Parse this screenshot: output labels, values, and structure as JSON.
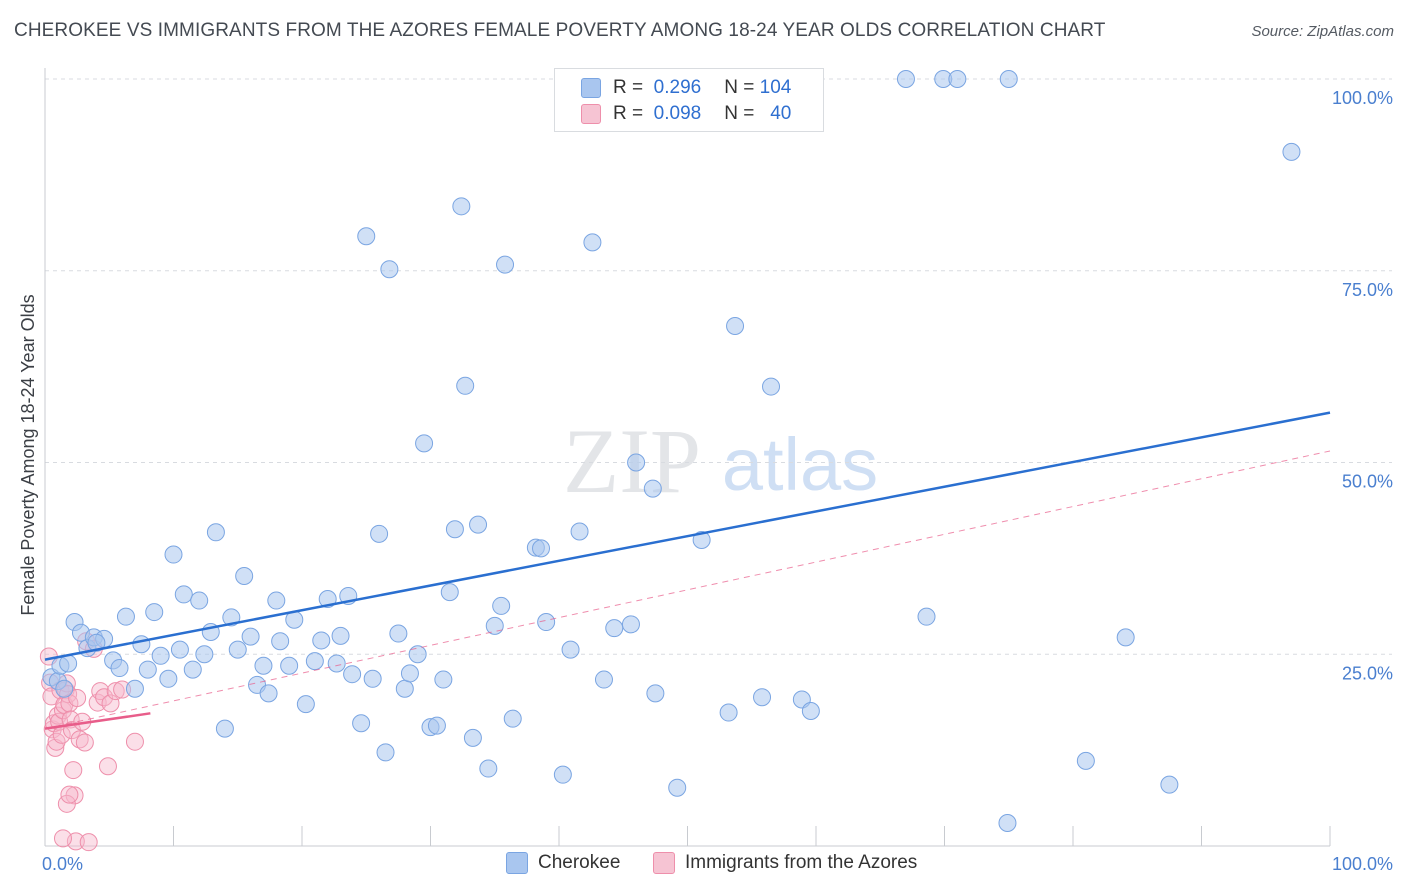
{
  "title": "CHEROKEE VS IMMIGRANTS FROM THE AZORES FEMALE POVERTY AMONG 18-24 YEAR OLDS CORRELATION CHART",
  "source": "Source: ZipAtlas.com",
  "watermark": {
    "zip": "ZIP",
    "atlas": "atlas"
  },
  "legend": {
    "rows": [
      {
        "r_label": "R =",
        "r_value": "0.296",
        "n_label": "N =",
        "n_value": "104"
      },
      {
        "r_label": "R =",
        "r_value": "0.098",
        "n_label": "N =",
        "n_value": "40"
      }
    ]
  },
  "bottom_legend": {
    "series1": "Cherokee",
    "series2": "Immigrants from the Azores"
  },
  "colors": {
    "blue_fill": "#a9c6ef",
    "blue_stroke": "#7aa5e2",
    "blue_line": "#2a6fd0",
    "pink_fill": "#f6b9cb",
    "pink_stroke": "#ee8fab",
    "pink_line": "#e85d8a",
    "tick_text": "#4a7fcf",
    "grid": "#d8dbe0"
  },
  "chart_data": {
    "type": "scatter",
    "title": "CHEROKEE VS IMMIGRANTS FROM THE AZORES FEMALE POVERTY AMONG 18-24 YEAR OLDS CORRELATION CHART",
    "xlabel": "",
    "ylabel": "Female Poverty Among 18-24 Year Olds",
    "xlim": [
      0,
      100
    ],
    "ylim": [
      0,
      100
    ],
    "x_tick_labels": [
      "0.0%",
      "100.0%"
    ],
    "y_ticks": [
      25,
      50,
      75,
      100
    ],
    "y_tick_labels": [
      "25.0%",
      "50.0%",
      "75.0%",
      "100.0%"
    ],
    "series": [
      {
        "name": "Cherokee",
        "r": 0.296,
        "n": 104,
        "trend": {
          "x": [
            0,
            100
          ],
          "y": [
            24.3,
            56.5
          ],
          "style": "solid"
        },
        "points": [
          [
            0.5,
            22.0
          ],
          [
            1.0,
            21.5
          ],
          [
            1.2,
            23.5
          ],
          [
            1.5,
            20.5
          ],
          [
            1.8,
            23.8
          ],
          [
            2.3,
            29.2
          ],
          [
            2.8,
            27.8
          ],
          [
            3.3,
            25.8
          ],
          [
            3.8,
            27.2
          ],
          [
            4.6,
            27.0
          ],
          [
            5.3,
            24.2
          ],
          [
            5.8,
            23.2
          ],
          [
            6.3,
            29.9
          ],
          [
            7.0,
            20.5
          ],
          [
            7.5,
            26.3
          ],
          [
            8.0,
            23.0
          ],
          [
            8.5,
            30.5
          ],
          [
            9.0,
            24.8
          ],
          [
            9.6,
            21.8
          ],
          [
            10.0,
            38.0
          ],
          [
            10.5,
            25.6
          ],
          [
            10.8,
            32.8
          ],
          [
            11.5,
            23.0
          ],
          [
            12.0,
            32.0
          ],
          [
            12.4,
            25.0
          ],
          [
            12.9,
            27.9
          ],
          [
            13.3,
            40.9
          ],
          [
            14.0,
            15.3
          ],
          [
            14.5,
            29.8
          ],
          [
            15.0,
            25.6
          ],
          [
            15.5,
            35.2
          ],
          [
            16.0,
            27.3
          ],
          [
            16.5,
            21.0
          ],
          [
            17.0,
            23.5
          ],
          [
            17.4,
            19.9
          ],
          [
            18.0,
            32.0
          ],
          [
            18.3,
            26.7
          ],
          [
            19.0,
            23.5
          ],
          [
            19.4,
            29.5
          ],
          [
            20.3,
            18.5
          ],
          [
            21.0,
            24.1
          ],
          [
            21.5,
            26.8
          ],
          [
            22.0,
            32.2
          ],
          [
            22.7,
            23.8
          ],
          [
            23.0,
            27.4
          ],
          [
            23.6,
            32.6
          ],
          [
            23.9,
            22.4
          ],
          [
            24.6,
            16.0
          ],
          [
            25.0,
            79.5
          ],
          [
            25.5,
            21.8
          ],
          [
            26.0,
            40.7
          ],
          [
            26.5,
            12.2
          ],
          [
            26.8,
            75.2
          ],
          [
            27.5,
            27.7
          ],
          [
            28.0,
            20.5
          ],
          [
            28.4,
            22.5
          ],
          [
            29.0,
            25.0
          ],
          [
            29.5,
            52.5
          ],
          [
            30.0,
            15.5
          ],
          [
            30.5,
            15.7
          ],
          [
            31.0,
            21.7
          ],
          [
            31.5,
            33.1
          ],
          [
            31.9,
            41.3
          ],
          [
            32.4,
            83.4
          ],
          [
            32.7,
            60.0
          ],
          [
            33.3,
            14.1
          ],
          [
            33.7,
            41.9
          ],
          [
            34.5,
            10.1
          ],
          [
            35.0,
            28.7
          ],
          [
            35.5,
            31.3
          ],
          [
            35.8,
            75.8
          ],
          [
            36.4,
            16.6
          ],
          [
            38.2,
            38.9
          ],
          [
            38.6,
            38.8
          ],
          [
            39.0,
            29.2
          ],
          [
            40.3,
            9.3
          ],
          [
            40.9,
            25.6
          ],
          [
            41.6,
            41.0
          ],
          [
            42.6,
            78.7
          ],
          [
            43.5,
            21.7
          ],
          [
            44.3,
            28.4
          ],
          [
            45.6,
            28.9
          ],
          [
            46.0,
            50.0
          ],
          [
            47.3,
            46.6
          ],
          [
            47.5,
            19.9
          ],
          [
            49.2,
            7.6
          ],
          [
            51.1,
            39.9
          ],
          [
            53.2,
            17.4
          ],
          [
            53.7,
            67.8
          ],
          [
            55.8,
            19.4
          ],
          [
            56.5,
            59.9
          ],
          [
            58.9,
            19.1
          ],
          [
            59.6,
            17.6
          ],
          [
            67.0,
            100.0
          ],
          [
            68.6,
            29.9
          ],
          [
            69.9,
            100.0
          ],
          [
            71.0,
            100.0
          ],
          [
            74.9,
            3.0
          ],
          [
            75.0,
            100.0
          ],
          [
            81.0,
            11.1
          ],
          [
            84.1,
            27.2
          ],
          [
            87.5,
            8.0
          ],
          [
            97.0,
            90.5
          ],
          [
            4.0,
            26.5
          ]
        ]
      },
      {
        "name": "Immigrants from the Azores",
        "r": 0.098,
        "n": 40,
        "trend": {
          "x": [
            0,
            8.2
          ],
          "y": [
            15.3,
            17.3
          ],
          "style": "solid"
        },
        "trend_extended": {
          "x": [
            0,
            100
          ],
          "y": [
            15.3,
            51.5
          ],
          "style": "dashed"
        },
        "points": [
          [
            0.3,
            24.7
          ],
          [
            0.4,
            21.3
          ],
          [
            0.5,
            19.5
          ],
          [
            0.6,
            15.2
          ],
          [
            0.7,
            16.0
          ],
          [
            0.8,
            12.8
          ],
          [
            0.9,
            13.6
          ],
          [
            1.0,
            17.0
          ],
          [
            1.1,
            16.2
          ],
          [
            1.2,
            20.3
          ],
          [
            1.3,
            14.5
          ],
          [
            1.4,
            17.7
          ],
          [
            1.5,
            18.4
          ],
          [
            1.6,
            20.3
          ],
          [
            1.7,
            21.2
          ],
          [
            1.8,
            19.8
          ],
          [
            1.9,
            18.6
          ],
          [
            2.0,
            16.5
          ],
          [
            2.1,
            15.1
          ],
          [
            2.2,
            9.9
          ],
          [
            2.3,
            6.6
          ],
          [
            2.4,
            0.6
          ],
          [
            2.5,
            19.3
          ],
          [
            2.7,
            13.9
          ],
          [
            2.9,
            16.2
          ],
          [
            3.1,
            13.5
          ],
          [
            3.2,
            26.7
          ],
          [
            3.4,
            0.5
          ],
          [
            3.8,
            25.7
          ],
          [
            4.1,
            18.7
          ],
          [
            4.3,
            20.2
          ],
          [
            4.6,
            19.4
          ],
          [
            4.9,
            10.4
          ],
          [
            5.1,
            18.6
          ],
          [
            5.5,
            20.2
          ],
          [
            6.0,
            20.4
          ],
          [
            7.0,
            13.6
          ],
          [
            1.4,
            1.0
          ],
          [
            1.7,
            5.5
          ],
          [
            1.9,
            6.7
          ]
        ]
      }
    ]
  }
}
